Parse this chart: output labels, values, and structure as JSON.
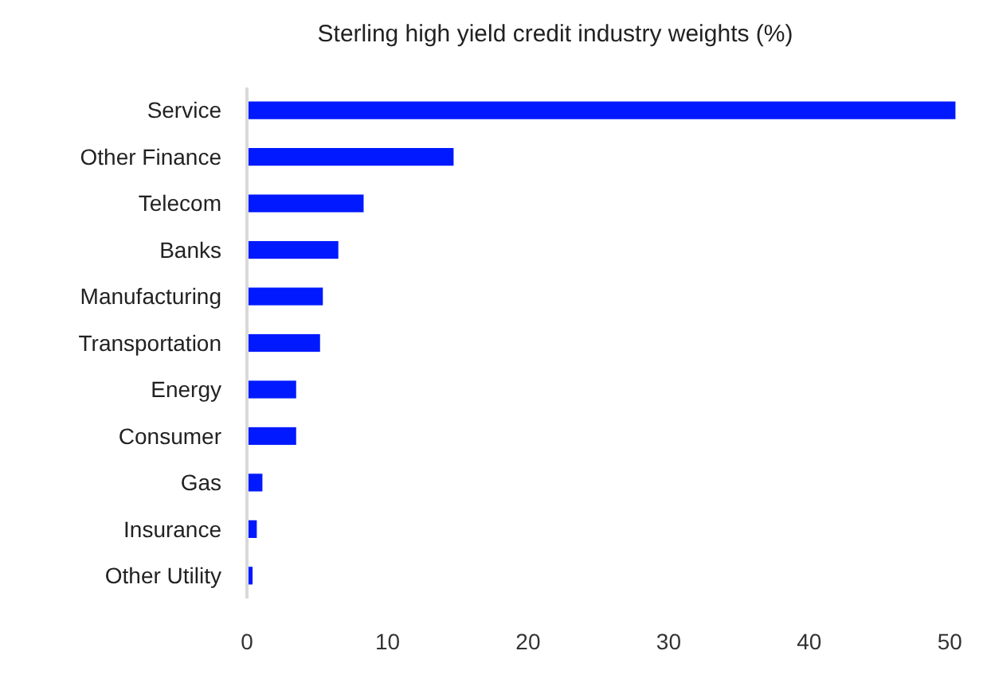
{
  "chart_data": {
    "type": "bar",
    "orientation": "horizontal",
    "title": "Sterling high yield credit industry weights (%)",
    "categories": [
      "Service",
      "Other Finance",
      "Telecom",
      "Banks",
      "Manufacturing",
      "Transportation",
      "Energy",
      "Consumer",
      "Gas",
      "Insurance",
      "Other Utility"
    ],
    "values": [
      50.4,
      14.7,
      8.3,
      6.5,
      5.4,
      5.2,
      3.5,
      3.5,
      1.1,
      0.7,
      0.4
    ],
    "color": "#0019ff",
    "xlim": [
      0,
      51
    ],
    "xticks": [
      0,
      10,
      20,
      30,
      40,
      50
    ],
    "grid": false
  }
}
